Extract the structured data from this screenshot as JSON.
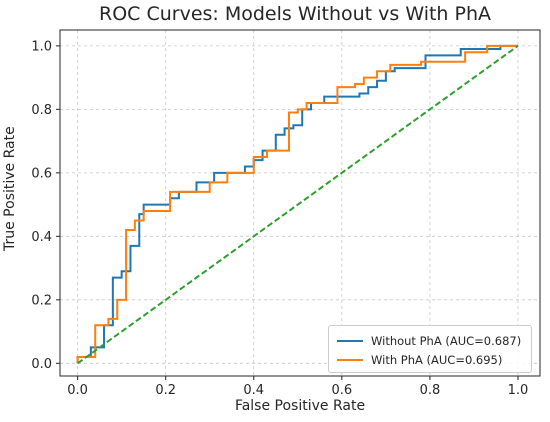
{
  "chart_data": {
    "type": "line",
    "title": "ROC Curves: Models Without vs With PhA",
    "xlabel": "False Positive Rate",
    "ylabel": "True Positive Rate",
    "xlim": [
      -0.04,
      1.05
    ],
    "ylim": [
      -0.04,
      1.05
    ],
    "xticks": [
      "0.0",
      "0.2",
      "0.4",
      "0.6",
      "0.8",
      "1.0"
    ],
    "yticks": [
      "0.0",
      "0.2",
      "0.4",
      "0.6",
      "0.8",
      "1.0"
    ],
    "grid": true,
    "legend_position": "lower-right",
    "series": [
      {
        "name": "Without PhA (AUC=0.687)",
        "color": "#1f77b4",
        "x": [
          0.0,
          0.0,
          0.03,
          0.03,
          0.06,
          0.06,
          0.08,
          0.08,
          0.1,
          0.1,
          0.12,
          0.12,
          0.14,
          0.14,
          0.15,
          0.15,
          0.17,
          0.17,
          0.21,
          0.21,
          0.23,
          0.23,
          0.27,
          0.27,
          0.31,
          0.31,
          0.38,
          0.38,
          0.4,
          0.4,
          0.42,
          0.42,
          0.45,
          0.45,
          0.47,
          0.47,
          0.49,
          0.49,
          0.51,
          0.51,
          0.53,
          0.53,
          0.56,
          0.56,
          0.58,
          0.58,
          0.64,
          0.64,
          0.66,
          0.66,
          0.68,
          0.68,
          0.7,
          0.7,
          0.72,
          0.72,
          0.79,
          0.79,
          0.87,
          0.87,
          0.94,
          0.94,
          0.96,
          0.96,
          1.0
        ],
        "y": [
          0.0,
          0.02,
          0.02,
          0.05,
          0.05,
          0.12,
          0.12,
          0.27,
          0.27,
          0.29,
          0.29,
          0.37,
          0.37,
          0.47,
          0.47,
          0.5,
          0.5,
          0.5,
          0.5,
          0.52,
          0.52,
          0.54,
          0.54,
          0.57,
          0.57,
          0.6,
          0.6,
          0.62,
          0.62,
          0.64,
          0.64,
          0.67,
          0.67,
          0.72,
          0.72,
          0.74,
          0.74,
          0.75,
          0.75,
          0.8,
          0.8,
          0.82,
          0.82,
          0.84,
          0.84,
          0.84,
          0.84,
          0.85,
          0.85,
          0.87,
          0.87,
          0.89,
          0.89,
          0.92,
          0.92,
          0.93,
          0.93,
          0.97,
          0.97,
          0.99,
          0.99,
          0.99,
          0.99,
          1.0,
          1.0
        ]
      },
      {
        "name": "With PhA (AUC=0.695)",
        "color": "#ff7f0e",
        "x": [
          0.0,
          0.0,
          0.04,
          0.04,
          0.07,
          0.07,
          0.09,
          0.09,
          0.11,
          0.11,
          0.13,
          0.13,
          0.15,
          0.15,
          0.21,
          0.21,
          0.3,
          0.3,
          0.34,
          0.34,
          0.4,
          0.4,
          0.43,
          0.43,
          0.48,
          0.48,
          0.5,
          0.5,
          0.52,
          0.52,
          0.59,
          0.59,
          0.63,
          0.63,
          0.65,
          0.65,
          0.68,
          0.68,
          0.71,
          0.71,
          0.78,
          0.78,
          0.82,
          0.82,
          0.88,
          0.88,
          0.93,
          0.93,
          1.0
        ],
        "y": [
          0.0,
          0.02,
          0.02,
          0.12,
          0.12,
          0.14,
          0.14,
          0.2,
          0.2,
          0.42,
          0.42,
          0.45,
          0.45,
          0.48,
          0.48,
          0.54,
          0.54,
          0.57,
          0.57,
          0.6,
          0.6,
          0.65,
          0.65,
          0.67,
          0.67,
          0.79,
          0.79,
          0.8,
          0.8,
          0.82,
          0.82,
          0.87,
          0.87,
          0.88,
          0.88,
          0.9,
          0.9,
          0.92,
          0.92,
          0.94,
          0.94,
          0.95,
          0.95,
          0.95,
          0.95,
          0.98,
          0.98,
          1.0,
          1.0
        ]
      },
      {
        "name": "",
        "color": "#2ca02c",
        "dash": "dashed",
        "x": [
          0,
          1
        ],
        "y": [
          0,
          1
        ]
      }
    ]
  }
}
